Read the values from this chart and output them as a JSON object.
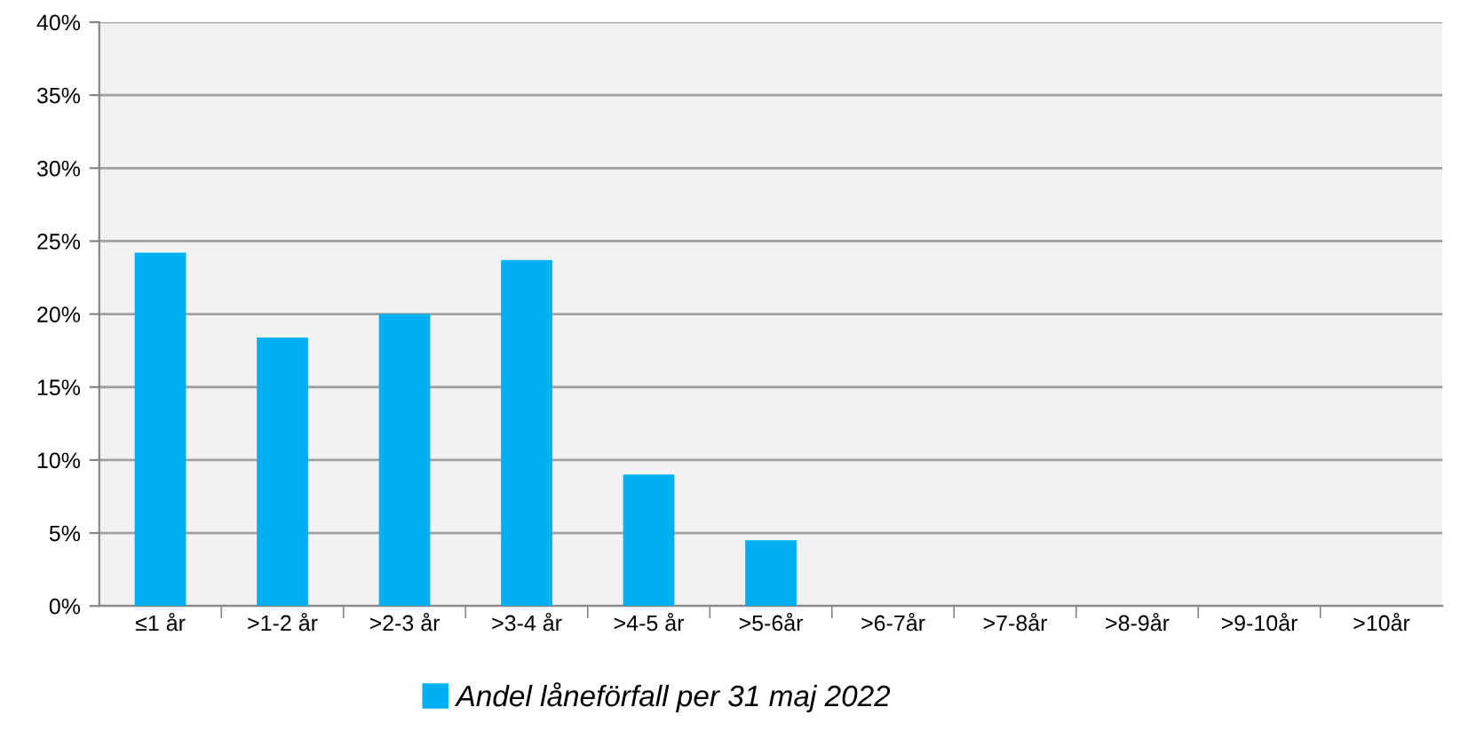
{
  "chart_data": {
    "type": "bar",
    "categories": [
      "≤1 år",
      ">1-2 år",
      ">2-3 år",
      ">3-4 år",
      ">4-5 år",
      ">5-6år",
      ">6-7år",
      ">7-8år",
      ">8-9år",
      ">9-10år",
      ">10år"
    ],
    "series": [
      {
        "name": "Andel låneförfall per 31 maj 2022",
        "color": "#00b0f0",
        "values": [
          24.2,
          18.4,
          20.0,
          23.7,
          9.0,
          4.5,
          0,
          0,
          0,
          0,
          0
        ]
      }
    ],
    "ylim": [
      0,
      40
    ],
    "yticks": [
      {
        "value": 0,
        "label": "0%"
      },
      {
        "value": 5,
        "label": "5%"
      },
      {
        "value": 10,
        "label": "10%"
      },
      {
        "value": 15,
        "label": "15%"
      },
      {
        "value": 20,
        "label": "20%"
      },
      {
        "value": 25,
        "label": "25%"
      },
      {
        "value": 30,
        "label": "30%"
      },
      {
        "value": 35,
        "label": "35%"
      },
      {
        "value": 40,
        "label": "40%"
      }
    ],
    "grid": "y",
    "legend": "bottom"
  }
}
